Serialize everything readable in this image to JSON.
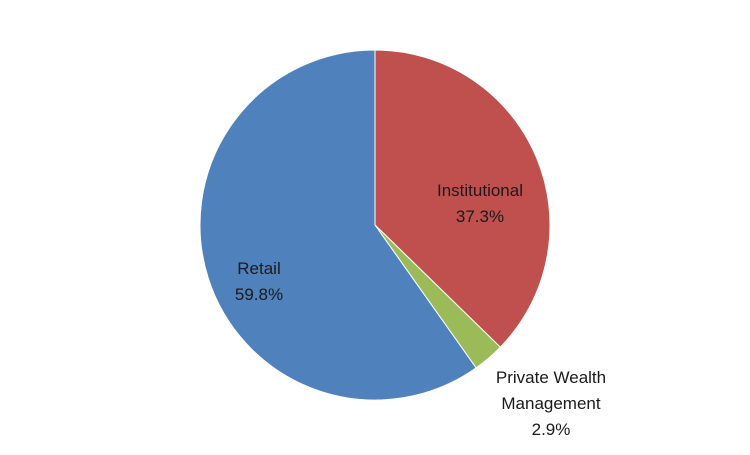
{
  "chart_data": {
    "type": "pie",
    "title": "",
    "legend": "none",
    "start_angle_deg": 0,
    "direction": "clockwise",
    "slices": [
      {
        "label_lines": [
          "Institutional"
        ],
        "value_label": "37.3%",
        "value": 37.3,
        "color": "#C0504D"
      },
      {
        "label_lines": [
          "Private Wealth",
          "Management"
        ],
        "value_label": "2.9%",
        "value": 2.9,
        "color": "#9BBB59"
      },
      {
        "label_lines": [
          "Retail"
        ],
        "value_label": "59.8%",
        "value": 59.8,
        "color": "#4F81BD"
      }
    ]
  }
}
